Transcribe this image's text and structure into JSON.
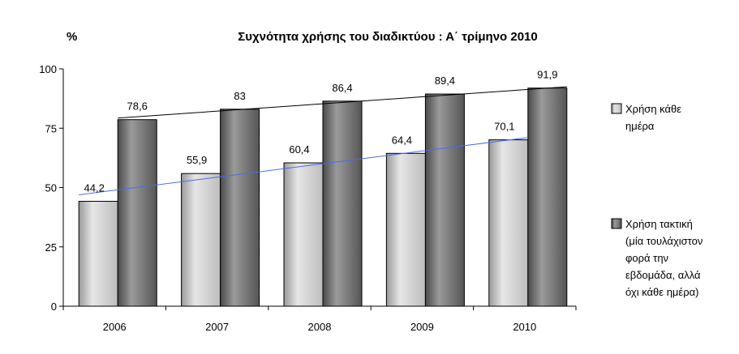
{
  "chart_data": {
    "type": "bar",
    "title": "Συχνότητα χρήσης του διαδικτύου : Α΄  τρίμηνο 2010",
    "ylabel": "%",
    "xlabel": "",
    "ylim": [
      0,
      100
    ],
    "yticks": [
      0,
      25,
      50,
      75,
      100
    ],
    "categories": [
      "2006",
      "2007",
      "2008",
      "2009",
      "2010"
    ],
    "grid": false,
    "legend_position": "right",
    "series": [
      {
        "name": "Χρήση κάθε ημέρα",
        "legend_lines": [
          "Χρήση κάθε",
          "ημέρα"
        ],
        "values": [
          44.2,
          55.9,
          60.4,
          64.4,
          70.1
        ],
        "labels": [
          "44,2",
          "55,9",
          "60,4",
          "64,4",
          "70,1"
        ],
        "color": "#c8c8c8",
        "trendline_color": "#4a6cf0"
      },
      {
        "name": "Χρήση τακτική (μία τουλάχιστον φορά την εβδομάδα, αλλά όχι κάθε ημέρα)",
        "legend_lines": [
          "Χρήση τακτική",
          "(μία τουλάχιστον",
          "φορά την",
          "εβδομάδα, αλλά",
          "όχι κάθε ημέρα)"
        ],
        "values": [
          78.6,
          83,
          86.4,
          89.4,
          91.9
        ],
        "labels": [
          "78,6",
          "83",
          "86,4",
          "89,4",
          "91,9"
        ],
        "color": "#6e6e6e",
        "trendline_color": "#000000"
      }
    ]
  }
}
